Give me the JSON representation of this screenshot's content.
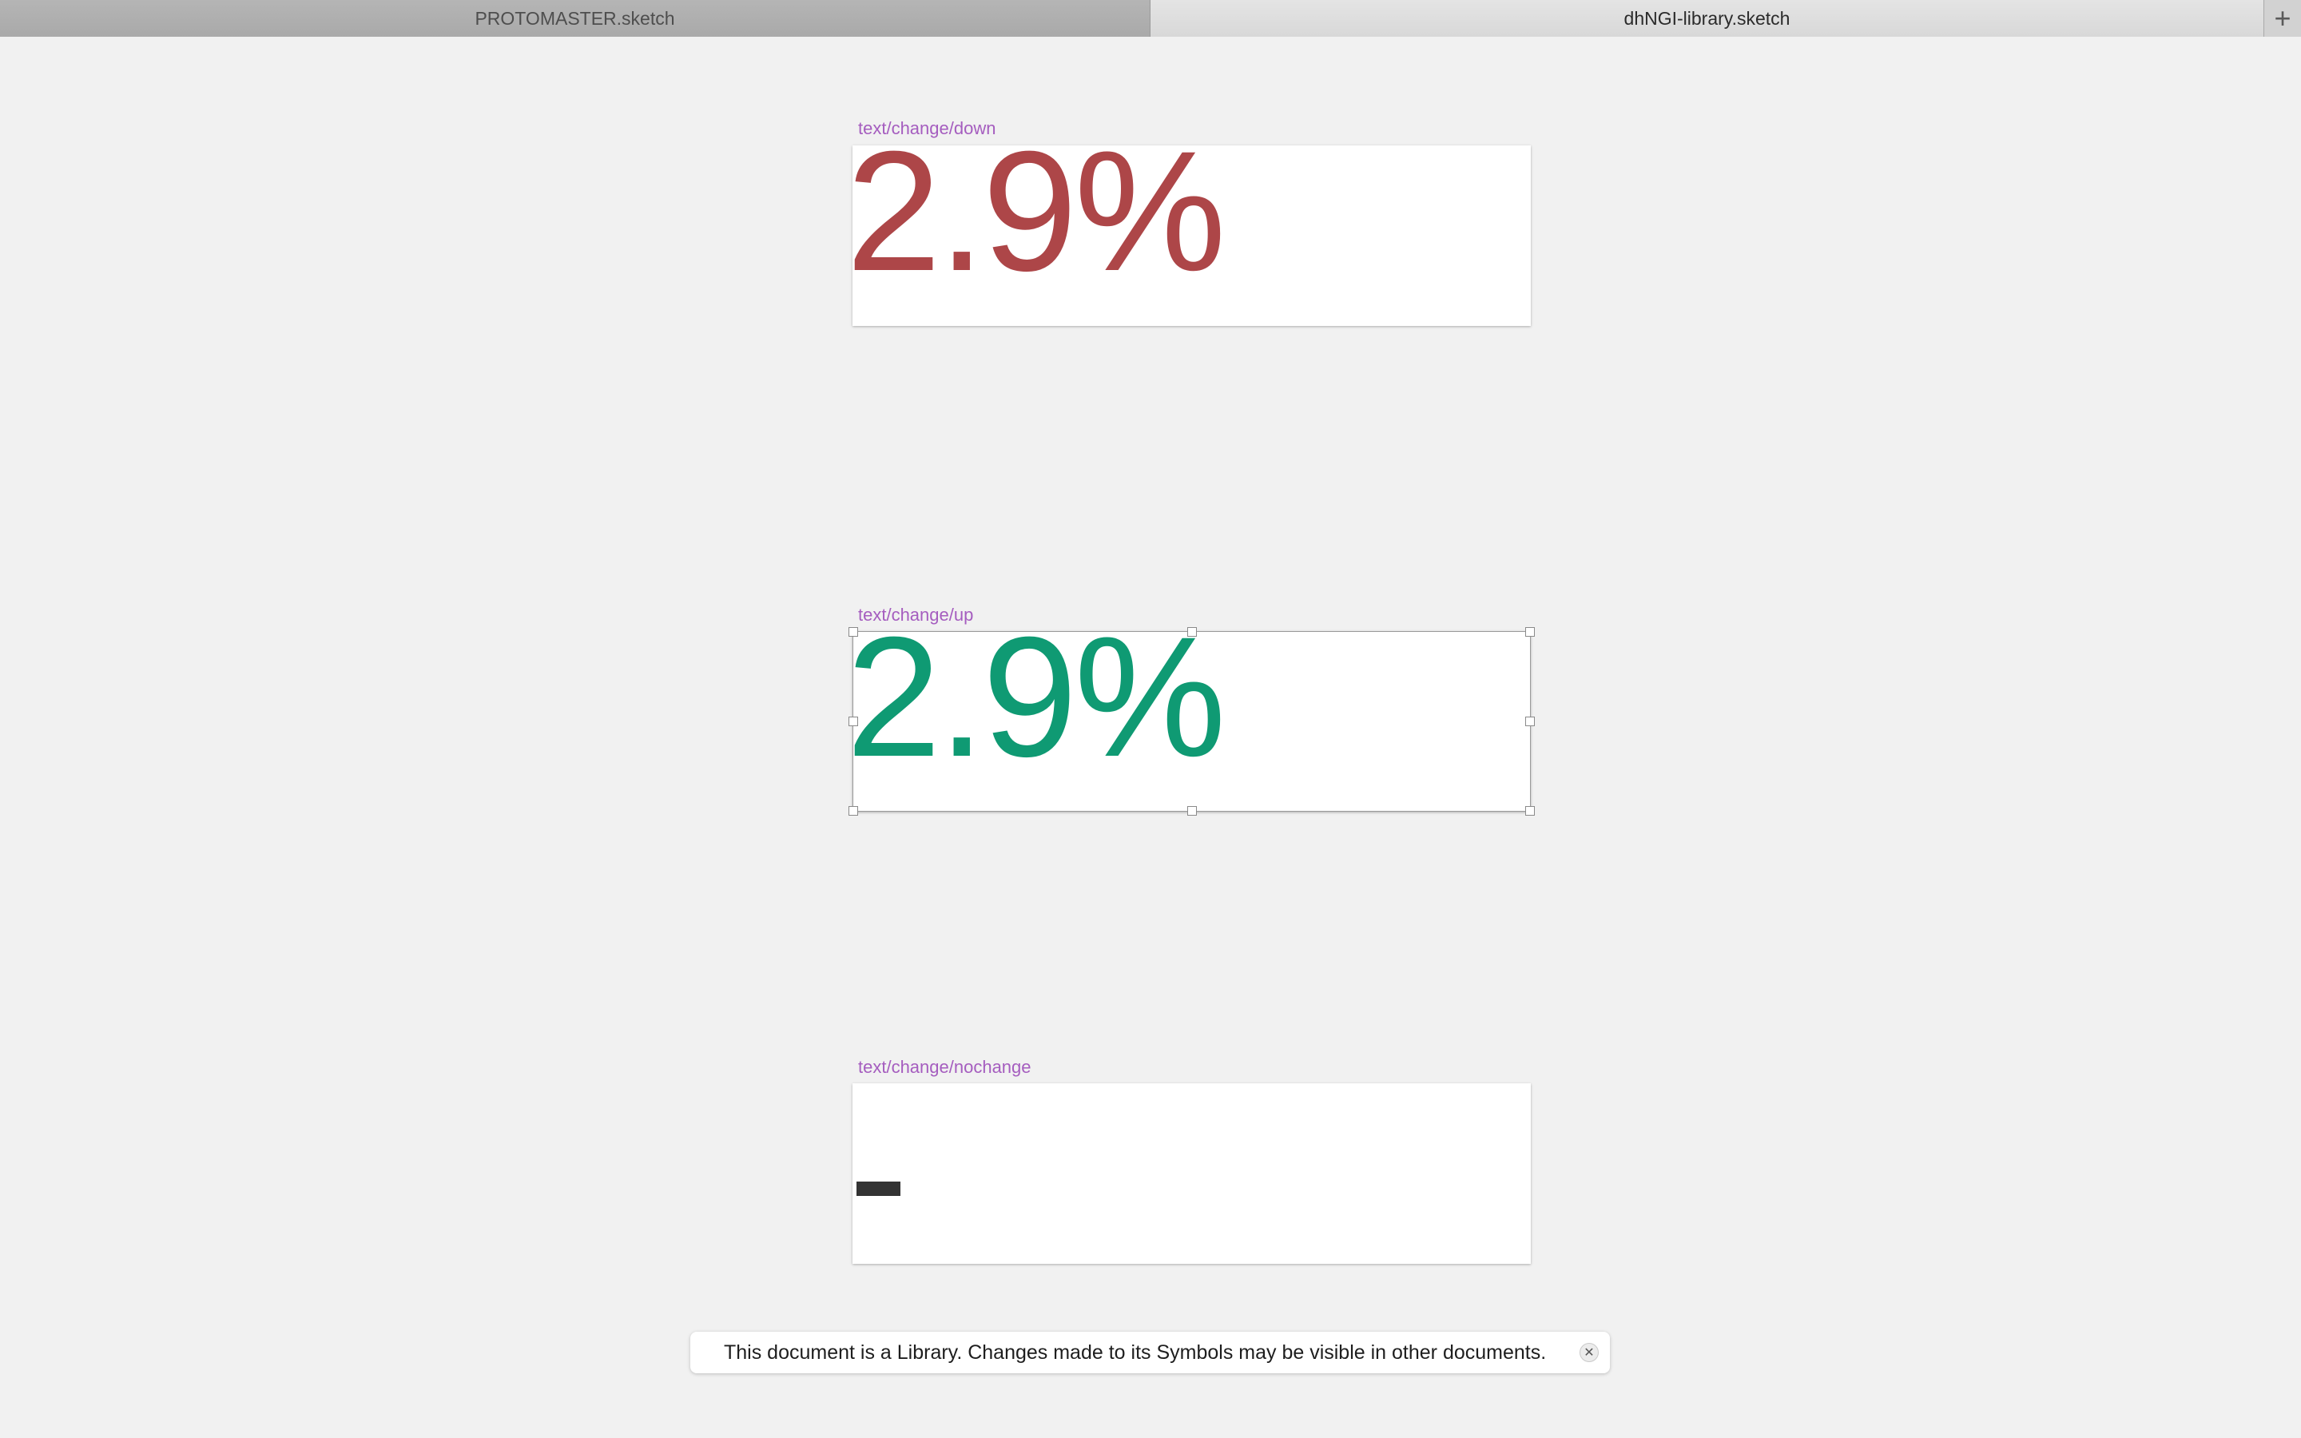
{
  "tabs": [
    {
      "label": "PROTOMASTER.sketch",
      "active": false
    },
    {
      "label": "dhNGI-library.sketch",
      "active": true
    }
  ],
  "add_tab_icon": "plus-icon",
  "add_tab_glyph": "+",
  "artboards": [
    {
      "name": "text/change/down",
      "value": "2.9%",
      "color": "#ad4648"
    },
    {
      "name": "text/change/up",
      "value": "2.9%",
      "color": "#0f9a73",
      "selected": true
    },
    {
      "name": "text/change/nochange",
      "bar_color": "#333333"
    }
  ],
  "label_color": "#a55dbf",
  "banner": {
    "message": "This document is a Library. Changes made to its Symbols may be visible in other documents.",
    "close_icon": "close-icon",
    "close_glyph": "✕"
  }
}
